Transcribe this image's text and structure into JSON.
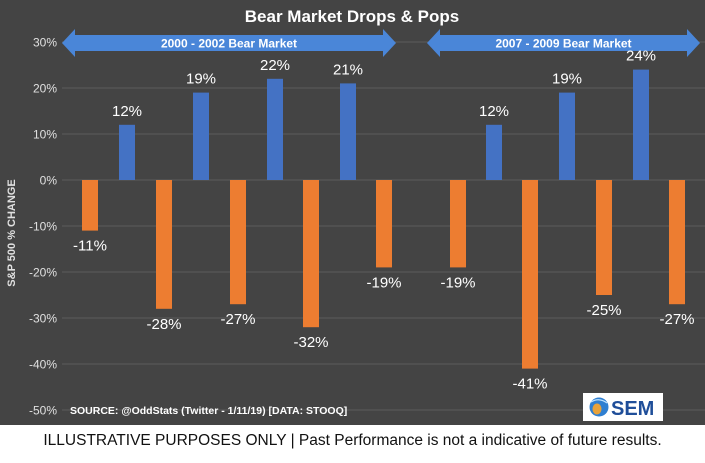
{
  "chart_data": {
    "type": "bar",
    "title": "Bear Market Drops & Pops",
    "ylabel": "S&P 500 % CHANGE",
    "xlabel": "",
    "ylim": [
      -50,
      30
    ],
    "yticks": [
      30,
      20,
      10,
      0,
      -10,
      -20,
      -30,
      -40,
      -50
    ],
    "ytick_labels": [
      "30%",
      "20%",
      "10%",
      "0%",
      "-10%",
      "-20%",
      "-30%",
      "-40%",
      "-50%"
    ],
    "grid": true,
    "periods": [
      {
        "label": "2000 - 2002 Bear Market",
        "bars": [
          {
            "value": -11,
            "label": "-11%",
            "kind": "drop"
          },
          {
            "value": 12,
            "label": "12%",
            "kind": "pop"
          },
          {
            "value": -28,
            "label": "-28%",
            "kind": "drop"
          },
          {
            "value": 19,
            "label": "19%",
            "kind": "pop"
          },
          {
            "value": -27,
            "label": "-27%",
            "kind": "drop"
          },
          {
            "value": 22,
            "label": "22%",
            "kind": "pop"
          },
          {
            "value": -32,
            "label": "-32%",
            "kind": "drop"
          },
          {
            "value": 21,
            "label": "21%",
            "kind": "pop"
          },
          {
            "value": -19,
            "label": "-19%",
            "kind": "drop"
          }
        ]
      },
      {
        "label": "2007 - 2009 Bear Market",
        "bars": [
          {
            "value": -19,
            "label": "-19%",
            "kind": "drop"
          },
          {
            "value": 12,
            "label": "12%",
            "kind": "pop"
          },
          {
            "value": -41,
            "label": "-41%",
            "kind": "drop"
          },
          {
            "value": 19,
            "label": "19%",
            "kind": "pop"
          },
          {
            "value": -25,
            "label": "-25%",
            "kind": "drop"
          },
          {
            "value": 24,
            "label": "24%",
            "kind": "pop"
          },
          {
            "value": -27,
            "label": "-27%",
            "kind": "drop"
          }
        ]
      }
    ],
    "source": "SOURCE: @OddStats (Twitter - 1/11/19) [DATA: STOOQ]",
    "logo_text": "SEM"
  },
  "colors": {
    "background": "#444444",
    "grid": "#5c5c5c",
    "drop": "#ed7d31",
    "pop": "#4472c4",
    "arrow": "#4a86d8",
    "text": "#ffffff",
    "axis_text": "#e0e0e0",
    "logo_bg": "#ffffff",
    "logo_text": "#1f4e99"
  },
  "disclaimer": "ILLUSTRATIVE PURPOSES ONLY | Past Performance is not a indicative of future results."
}
